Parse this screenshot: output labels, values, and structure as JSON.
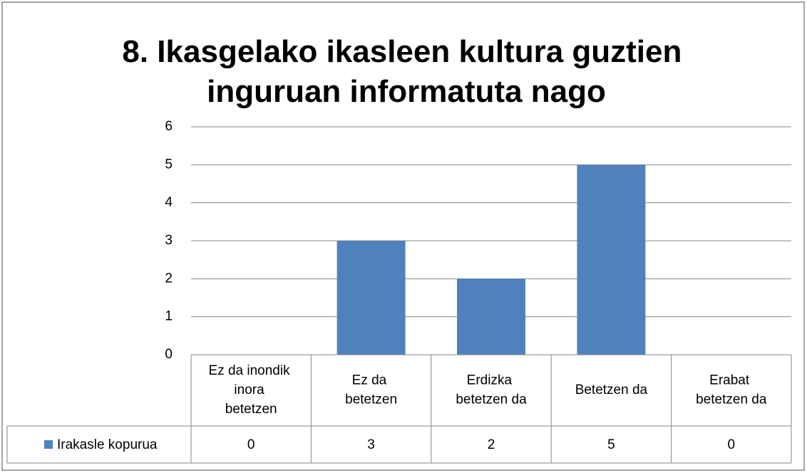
{
  "chart_data": {
    "type": "bar",
    "title": "8. Ikasgelako ikasleen kultura guztien inguruan informatuta nago",
    "categories": [
      "Ez da inondik inora betetzen",
      "Ez da betetzen",
      "Erdizka betetzen da",
      "Betetzen da",
      "Erabat betetzen da"
    ],
    "series": [
      {
        "name": "Irakasle kopurua",
        "color": "#4f81bd",
        "values": [
          0,
          3,
          2,
          5,
          0
        ]
      }
    ],
    "ylim": [
      0,
      6
    ],
    "yticks": [
      0,
      1,
      2,
      3,
      4,
      5,
      6
    ],
    "grid": true,
    "data_table": true
  }
}
